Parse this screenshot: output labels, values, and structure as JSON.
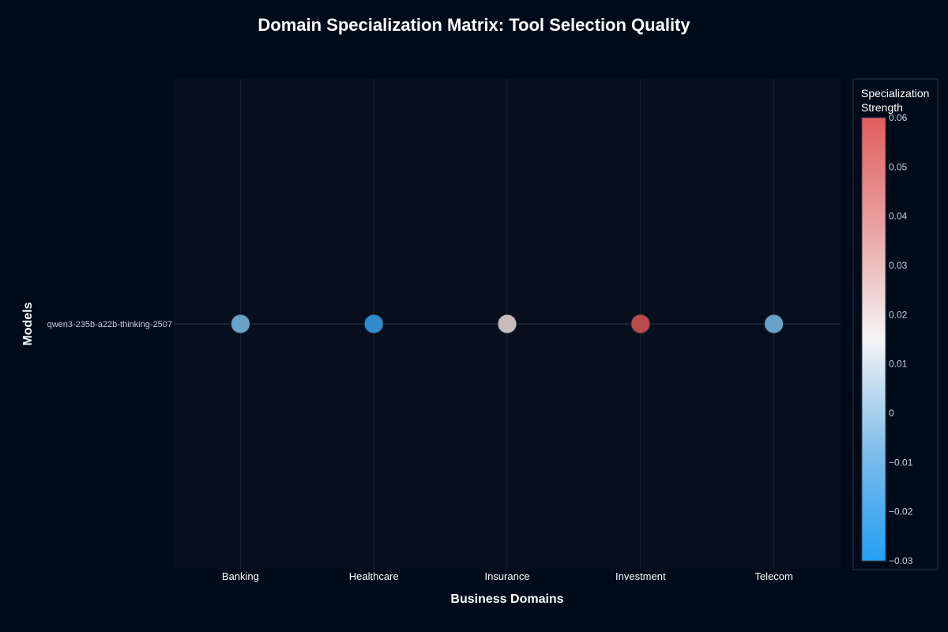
{
  "chart_data": {
    "type": "scatter",
    "title": "Domain Specialization Matrix: Tool Selection Quality",
    "xlabel": "Business Domains",
    "ylabel": "Models",
    "categories": [
      "Banking",
      "Healthcare",
      "Insurance",
      "Investment",
      "Telecom"
    ],
    "models": [
      "qwen3-235b-a22b-thinking-2507"
    ],
    "series": [
      {
        "model": "qwen3-235b-a22b-thinking-2507",
        "values": [
          -0.01,
          -0.025,
          0.02,
          0.06,
          -0.01
        ]
      }
    ],
    "colorbar": {
      "title_lines": [
        "Specialization",
        "Strength"
      ],
      "range": [
        -0.03,
        0.06
      ],
      "ticks": [
        0.06,
        0.05,
        0.04,
        0.03,
        0.02,
        0.01,
        0,
        -0.01,
        -0.02,
        -0.03
      ],
      "tick_labels": [
        "0.06",
        "0.05",
        "0.04",
        "0.03",
        "0.02",
        "0.01",
        "0",
        "−0.01",
        "−0.02",
        "−0.03"
      ],
      "colorscale": [
        [
          0.0,
          "#22a0f5"
        ],
        [
          0.5,
          "#f5f5f5"
        ],
        [
          1.0,
          "#e35c5c"
        ]
      ]
    },
    "grid": true,
    "colors": {
      "background": "#000b1a",
      "plot_background": "#070e1c",
      "grid": "#1a2232"
    }
  }
}
